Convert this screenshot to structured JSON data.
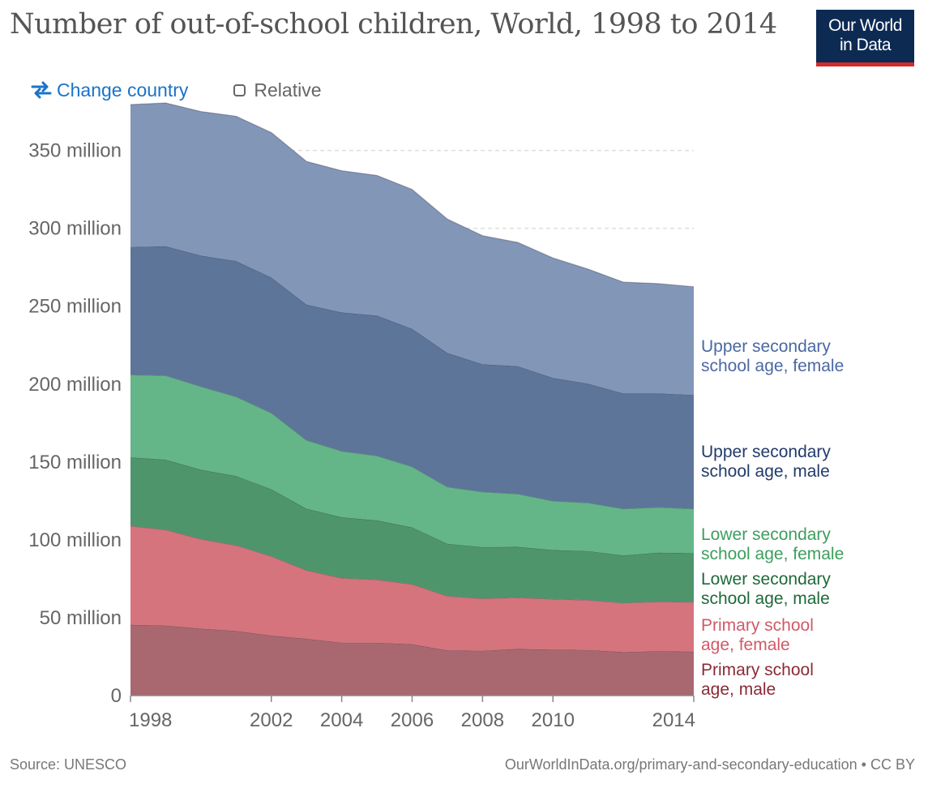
{
  "header": {
    "title": "Number of out-of-school children, World, 1998 to 2014",
    "logo_line1": "Our World",
    "logo_line2": "in Data"
  },
  "controls": {
    "change_country_label": "Change country",
    "relative_label": "Relative"
  },
  "footer": {
    "source": "Source: UNESCO",
    "url": "OurWorldInData.org/primary-and-secondary-education • CC BY"
  },
  "colors": {
    "accent": "#1a73c8",
    "logo_bg": "#0d2a53",
    "logo_bar": "#d42b2b"
  },
  "chart_data": {
    "type": "area",
    "stacked": true,
    "x": [
      1998,
      1999,
      2000,
      2001,
      2002,
      2003,
      2004,
      2005,
      2006,
      2007,
      2008,
      2009,
      2010,
      2011,
      2012,
      2013,
      2014
    ],
    "x_ticks": [
      1998,
      2002,
      2004,
      2006,
      2008,
      2010,
      2014
    ],
    "y_ticks": [
      0,
      50,
      100,
      150,
      200,
      250,
      300,
      350
    ],
    "y_tick_labels": [
      "0",
      "50 million",
      "100 million",
      "150 million",
      "200 million",
      "250 million",
      "300 million",
      "350 million"
    ],
    "ylim": [
      0,
      380
    ],
    "y_unit": "million",
    "grid": "horizontal dashed",
    "legend": "right, inline labels",
    "series": [
      {
        "name": "Primary school age, male",
        "label_lines": [
          "Primary school",
          "age, male"
        ],
        "color": "#a9686f",
        "text_color": "#8a2b35",
        "values": [
          45.5,
          45,
          43,
          41.5,
          38.5,
          36.5,
          34,
          34,
          33,
          29,
          28.8,
          30,
          29.5,
          29.3,
          28,
          28.5,
          28.2
        ]
      },
      {
        "name": "Primary school age, female",
        "label_lines": [
          "Primary school",
          "age, female"
        ],
        "color": "#d5747d",
        "text_color": "#d05a68",
        "values": [
          63.5,
          61.5,
          57.5,
          55,
          51,
          44,
          41.5,
          40.5,
          38.5,
          35,
          33.5,
          33,
          32.5,
          32,
          31.5,
          31.8,
          31.8
        ]
      },
      {
        "name": "Lower secondary school age, male",
        "label_lines": [
          "Lower secondary",
          "school age, male"
        ],
        "color": "#4e956c",
        "text_color": "#1e6a3a",
        "values": [
          44,
          45,
          44.5,
          44.5,
          43,
          39.5,
          39,
          38,
          36.5,
          33.5,
          33,
          32.5,
          31.5,
          31.5,
          30.5,
          31.5,
          31.5
        ]
      },
      {
        "name": "Lower secondary school age, female",
        "label_lines": [
          "Lower secondary",
          "school age, female"
        ],
        "color": "#64b688",
        "text_color": "#3d9e5e",
        "values": [
          53,
          54,
          53.5,
          51,
          49,
          44,
          42.5,
          41.5,
          39,
          36.5,
          35.5,
          34,
          31.5,
          31,
          30,
          29.2,
          28.5
        ]
      },
      {
        "name": "Upper secondary school age, male",
        "label_lines": [
          "Upper secondary",
          "school age, male"
        ],
        "color": "#5d7599",
        "text_color": "#213b6b",
        "values": [
          82,
          83,
          84,
          87,
          87,
          87,
          89,
          90,
          88.5,
          86,
          82,
          82,
          79,
          76.5,
          74,
          73,
          73
        ]
      },
      {
        "name": "Upper secondary school age, female",
        "label_lines": [
          "Upper secondary",
          "school age, female"
        ],
        "color": "#8296b8",
        "text_color": "#4a68a3",
        "values": [
          91.5,
          92,
          92.5,
          93,
          93,
          92,
          91,
          90,
          89.5,
          86,
          82.5,
          79.5,
          77,
          73.5,
          71.5,
          70.5,
          69.5
        ]
      }
    ]
  }
}
